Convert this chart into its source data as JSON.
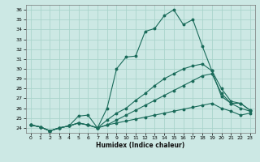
{
  "xlabel": "Humidex (Indice chaleur)",
  "bg_color": "#cce8e4",
  "grid_color": "#aad4cc",
  "line_color": "#1a6b5a",
  "xlim": [
    -0.5,
    23.5
  ],
  "ylim": [
    23.5,
    36.5
  ],
  "yticks": [
    24,
    25,
    26,
    27,
    28,
    29,
    30,
    31,
    32,
    33,
    34,
    35,
    36
  ],
  "xticks": [
    0,
    1,
    2,
    3,
    4,
    5,
    6,
    7,
    8,
    9,
    10,
    11,
    12,
    13,
    14,
    15,
    16,
    17,
    18,
    19,
    20,
    21,
    22,
    23
  ],
  "lines": [
    {
      "x": [
        0,
        1,
        2,
        3,
        4,
        5,
        6,
        7,
        8,
        9,
        10,
        11,
        12,
        13,
        14,
        15,
        16,
        17,
        18,
        19,
        20,
        21,
        22,
        23
      ],
      "y": [
        24.3,
        24.1,
        23.7,
        24.0,
        24.2,
        24.5,
        24.3,
        24.0,
        26.0,
        30.0,
        31.2,
        31.3,
        33.8,
        34.1,
        35.4,
        36.0,
        34.5,
        35.0,
        32.3,
        29.8,
        27.2,
        26.5,
        26.5,
        25.8
      ]
    },
    {
      "x": [
        0,
        1,
        2,
        3,
        4,
        5,
        6,
        7,
        8,
        9,
        10,
        11,
        12,
        13,
        14,
        15,
        16,
        17,
        18,
        19,
        20,
        21,
        22,
        23
      ],
      "y": [
        24.3,
        24.1,
        23.7,
        24.0,
        24.2,
        25.2,
        25.3,
        24.0,
        24.8,
        25.5,
        26.0,
        26.8,
        27.5,
        28.3,
        29.0,
        29.5,
        30.0,
        30.3,
        30.5,
        29.8,
        28.0,
        26.7,
        26.5,
        25.8
      ]
    },
    {
      "x": [
        0,
        1,
        2,
        3,
        4,
        5,
        6,
        7,
        8,
        9,
        10,
        11,
        12,
        13,
        14,
        15,
        16,
        17,
        18,
        19,
        20,
        21,
        22,
        23
      ],
      "y": [
        24.3,
        24.1,
        23.7,
        24.0,
        24.2,
        24.5,
        24.3,
        24.0,
        24.3,
        24.8,
        25.3,
        25.8,
        26.3,
        26.8,
        27.3,
        27.8,
        28.3,
        28.8,
        29.3,
        29.5,
        27.5,
        26.5,
        26.0,
        25.7
      ]
    },
    {
      "x": [
        0,
        1,
        2,
        3,
        4,
        5,
        6,
        7,
        8,
        9,
        10,
        11,
        12,
        13,
        14,
        15,
        16,
        17,
        18,
        19,
        20,
        21,
        22,
        23
      ],
      "y": [
        24.3,
        24.1,
        23.7,
        24.0,
        24.2,
        24.5,
        24.3,
        24.0,
        24.3,
        24.5,
        24.7,
        24.9,
        25.1,
        25.3,
        25.5,
        25.7,
        25.9,
        26.1,
        26.3,
        26.5,
        26.0,
        25.7,
        25.3,
        25.5
      ]
    }
  ]
}
